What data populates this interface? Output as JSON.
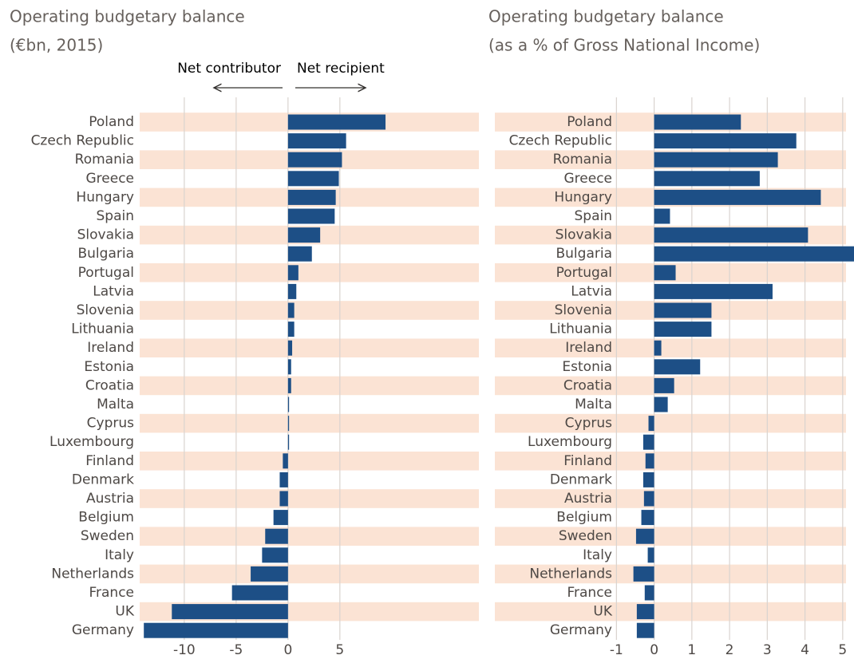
{
  "chart_data": [
    {
      "type": "hbar",
      "title": "Operating budgetary balance",
      "subtitle": "(€bn, 2015)",
      "annotations": [
        "Net contributor",
        "Net recipient"
      ],
      "categories": [
        "Poland",
        "Czech Republic",
        "Romania",
        "Greece",
        "Hungary",
        "Spain",
        "Slovakia",
        "Bulgaria",
        "Portugal",
        "Latvia",
        "Slovenia",
        "Lithuania",
        "Ireland",
        "Estonia",
        "Croatia",
        "Malta",
        "Cyprus",
        "Luxembourg",
        "Finland",
        "Denmark",
        "Austria",
        "Belgium",
        "Sweden",
        "Italy",
        "Netherlands",
        "France",
        "UK",
        "Germany"
      ],
      "values": [
        9.4,
        5.6,
        5.2,
        4.9,
        4.6,
        4.5,
        3.1,
        2.3,
        1.0,
        0.8,
        0.6,
        0.6,
        0.4,
        0.3,
        0.3,
        0.1,
        0.1,
        0.1,
        -0.5,
        -0.8,
        -0.8,
        -1.4,
        -2.2,
        -2.5,
        -3.6,
        -5.4,
        -11.2,
        -13.9
      ],
      "color": "#1d4f86",
      "band_color": "#fbe3d4",
      "xlim": [
        -14.3,
        18.4
      ],
      "xticks": [
        -10,
        -5,
        0,
        5
      ],
      "grid": true
    },
    {
      "type": "hbar",
      "title": "Operating budgetary balance",
      "subtitle": "(as a % of Gross National Income)",
      "categories": [
        "Poland",
        "Czech Republic",
        "Romania",
        "Greece",
        "Hungary",
        "Spain",
        "Slovakia",
        "Bulgaria",
        "Portugal",
        "Latvia",
        "Slovenia",
        "Lithuania",
        "Ireland",
        "Estonia",
        "Croatia",
        "Malta",
        "Cyprus",
        "Luxembourg",
        "Finland",
        "Denmark",
        "Austria",
        "Belgium",
        "Sweden",
        "Italy",
        "Netherlands",
        "France",
        "UK",
        "Germany"
      ],
      "values": [
        2.3,
        3.77,
        3.28,
        2.8,
        4.42,
        0.42,
        4.08,
        5.3,
        0.57,
        3.14,
        1.52,
        1.52,
        0.19,
        1.22,
        0.53,
        0.36,
        -0.15,
        -0.29,
        -0.23,
        -0.29,
        -0.27,
        -0.34,
        -0.48,
        -0.17,
        -0.55,
        -0.25,
        -0.46,
        -0.46
      ],
      "color": "#1d4f86",
      "band_color": "#fbe3d4",
      "xlim": [
        -1.05,
        5.3
      ],
      "xticks": [
        -1,
        0,
        1,
        2,
        3,
        4,
        5
      ],
      "grid": true
    }
  ]
}
